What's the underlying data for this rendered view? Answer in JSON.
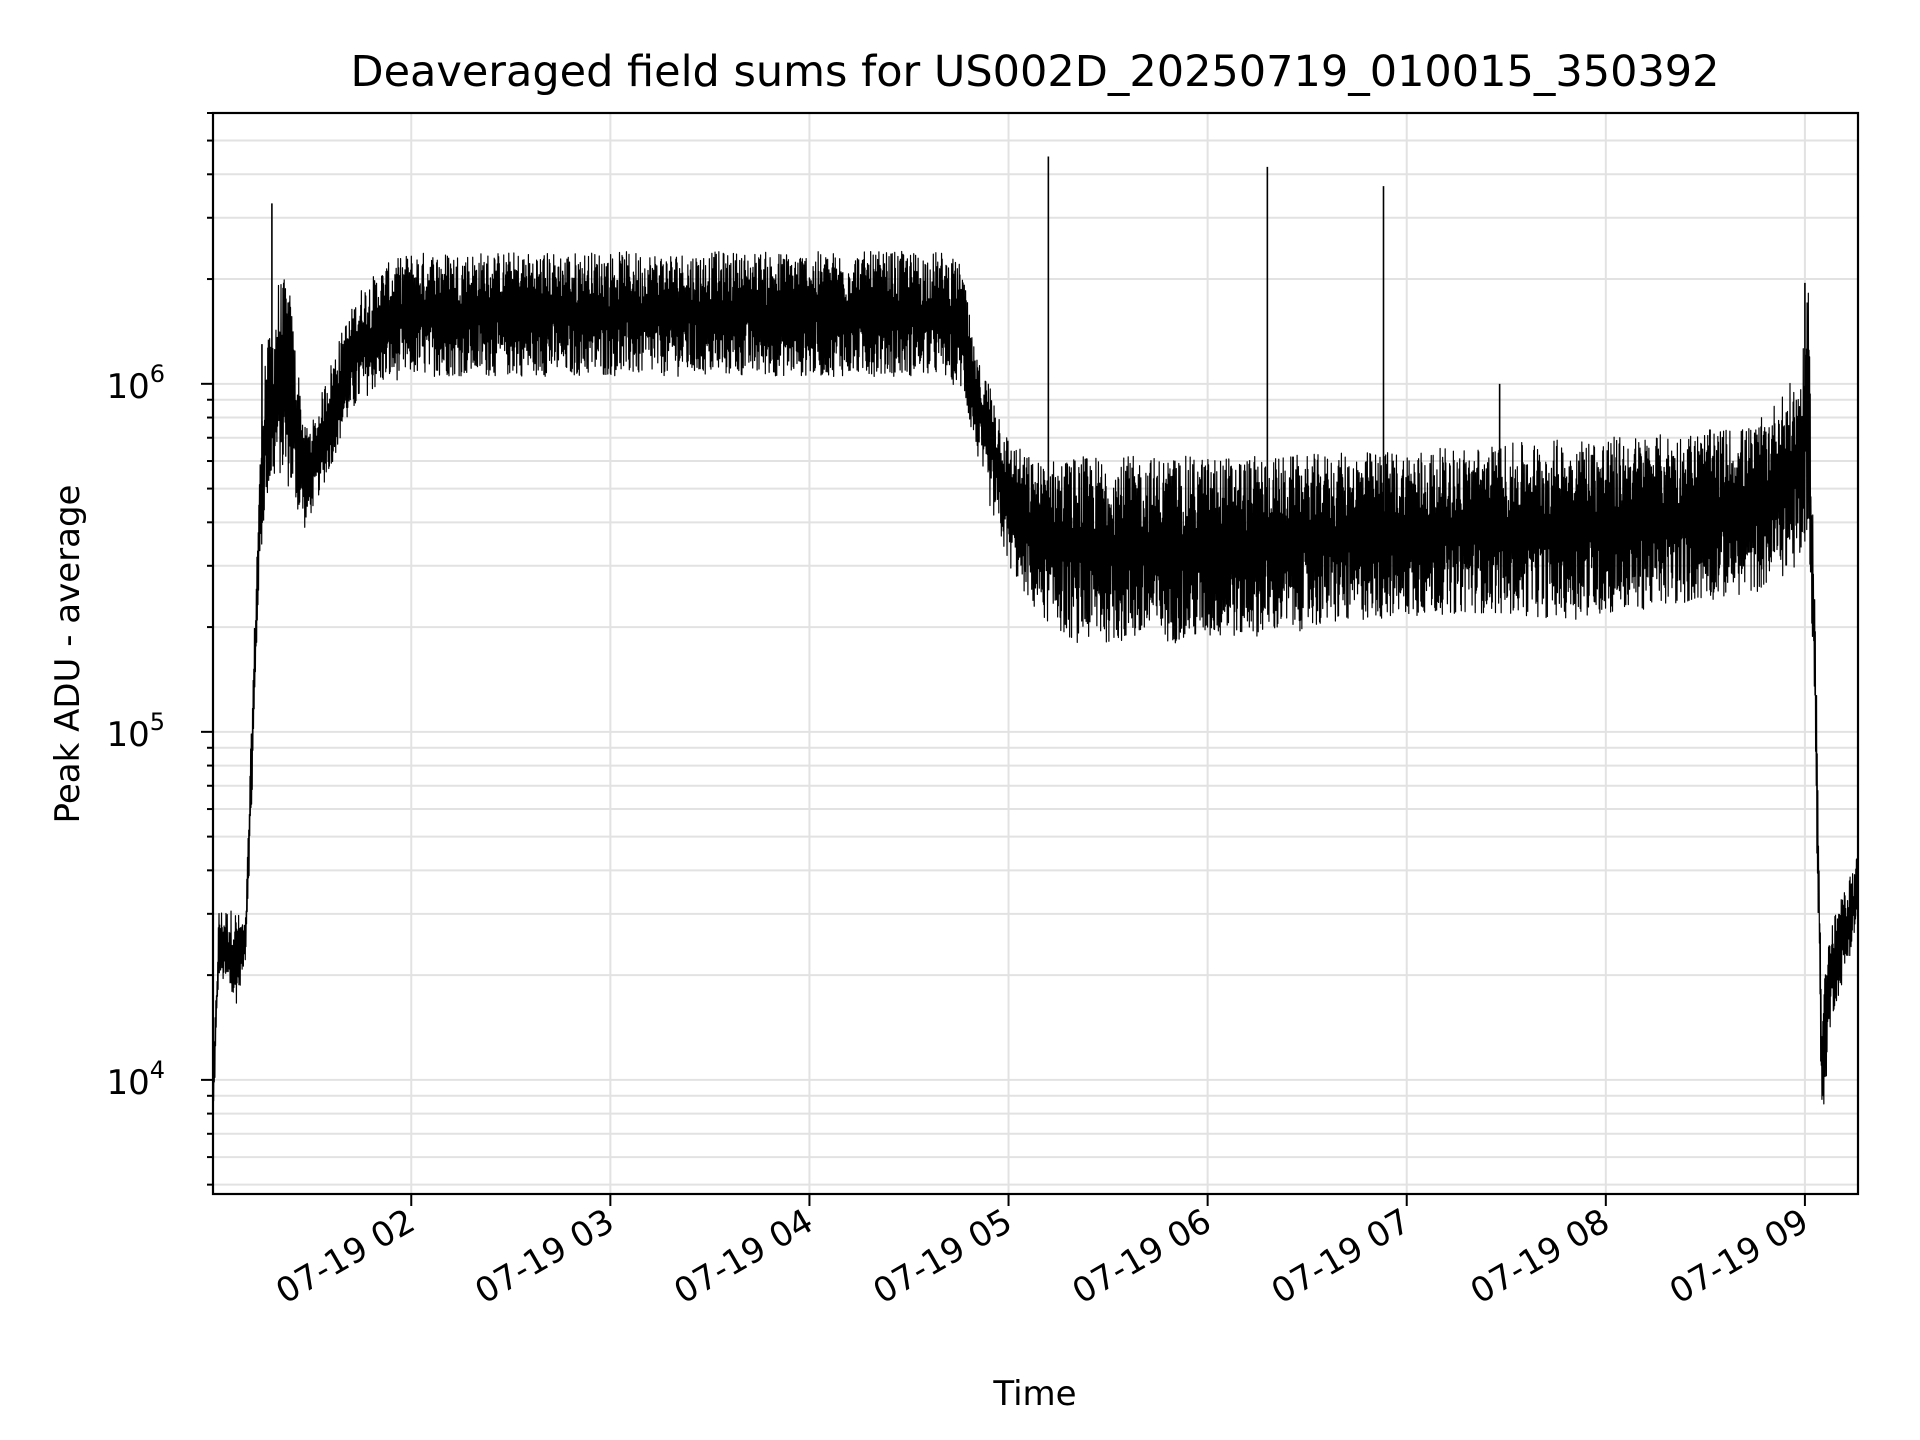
{
  "chart_data": {
    "type": "line",
    "title": "Deaveraged field sums for US002D_20250719_010015_350392",
    "xlabel": "Time",
    "ylabel": "Peak ADU - average",
    "yscale": "log",
    "grid": true,
    "x_range": [
      "2025-07-19 01:00:15",
      "2025-07-19 09:16"
    ],
    "ylim": [
      4700,
      6000000
    ],
    "x_ticks": [
      {
        "t": "2025-07-19 02:00",
        "label": "07-19 02"
      },
      {
        "t": "2025-07-19 03:00",
        "label": "07-19 03"
      },
      {
        "t": "2025-07-19 04:00",
        "label": "07-19 04"
      },
      {
        "t": "2025-07-19 05:00",
        "label": "07-19 05"
      },
      {
        "t": "2025-07-19 06:00",
        "label": "07-19 06"
      },
      {
        "t": "2025-07-19 07:00",
        "label": "07-19 07"
      },
      {
        "t": "2025-07-19 08:00",
        "label": "07-19 08"
      },
      {
        "t": "2025-07-19 09:00",
        "label": "07-19 09"
      }
    ],
    "y_ticks": [
      {
        "value": 10000,
        "base": "10",
        "exp": "4"
      },
      {
        "value": 100000,
        "base": "10",
        "exp": "5"
      },
      {
        "value": 1000000,
        "base": "10",
        "exp": "6"
      }
    ],
    "series_color": "#000000",
    "series": [
      {
        "envelope": [
          {
            "t": "2025-07-19 01:00:15",
            "low": 7000,
            "high": 10000
          },
          {
            "t": "2025-07-19 01:02",
            "low": 20000,
            "high": 31000
          },
          {
            "t": "2025-07-19 01:07",
            "low": 16000,
            "high": 31000
          },
          {
            "t": "2025-07-19 01:10",
            "low": 22000,
            "high": 28000
          },
          {
            "t": "2025-07-19 01:12",
            "low": 60000,
            "high": 120000
          },
          {
            "t": "2025-07-19 01:14",
            "low": 250000,
            "high": 500000
          },
          {
            "t": "2025-07-19 01:16",
            "low": 450000,
            "high": 1300000
          },
          {
            "t": "2025-07-19 01:18",
            "low": 500000,
            "high": 1400000
          },
          {
            "t": "2025-07-19 01:20",
            "low": 550000,
            "high": 2000000
          },
          {
            "t": "2025-07-19 01:23",
            "low": 500000,
            "high": 2000000
          },
          {
            "t": "2025-07-19 01:26",
            "low": 420000,
            "high": 1100000
          },
          {
            "t": "2025-07-19 01:28",
            "low": 380000,
            "high": 750000
          },
          {
            "t": "2025-07-19 01:31",
            "low": 450000,
            "high": 800000
          },
          {
            "t": "2025-07-19 01:35",
            "low": 550000,
            "high": 1100000
          },
          {
            "t": "2025-07-19 01:40",
            "low": 750000,
            "high": 1500000
          },
          {
            "t": "2025-07-19 01:45",
            "low": 900000,
            "high": 1900000
          },
          {
            "t": "2025-07-19 01:52",
            "low": 1000000,
            "high": 2200000
          },
          {
            "t": "2025-07-19 02:00",
            "low": 1050000,
            "high": 2400000
          },
          {
            "t": "2025-07-19 04:40",
            "low": 1050000,
            "high": 2400000
          },
          {
            "t": "2025-07-19 04:46",
            "low": 950000,
            "high": 2200000
          },
          {
            "t": "2025-07-19 04:50",
            "low": 650000,
            "high": 1200000
          },
          {
            "t": "2025-07-19 04:55",
            "low": 420000,
            "high": 1000000
          },
          {
            "t": "2025-07-19 05:00",
            "low": 300000,
            "high": 700000
          },
          {
            "t": "2025-07-19 05:08",
            "low": 220000,
            "high": 600000
          },
          {
            "t": "2025-07-19 05:20",
            "low": 180000,
            "high": 620000
          },
          {
            "t": "2025-07-19 05:50",
            "low": 180000,
            "high": 620000
          },
          {
            "t": "2025-07-19 06:20",
            "low": 190000,
            "high": 620000
          },
          {
            "t": "2025-07-19 06:50",
            "low": 210000,
            "high": 640000
          },
          {
            "t": "2025-07-19 07:20",
            "low": 220000,
            "high": 660000
          },
          {
            "t": "2025-07-19 07:50",
            "low": 210000,
            "high": 700000
          },
          {
            "t": "2025-07-19 08:20",
            "low": 230000,
            "high": 720000
          },
          {
            "t": "2025-07-19 08:45",
            "low": 250000,
            "high": 760000
          },
          {
            "t": "2025-07-19 08:59",
            "low": 300000,
            "high": 1100000
          },
          {
            "t": "2025-07-19 09:01",
            "low": 400000,
            "high": 1900000
          },
          {
            "t": "2025-07-19 09:03",
            "low": 100000,
            "high": 250000
          },
          {
            "t": "2025-07-19 09:05",
            "low": 7000,
            "high": 20000
          },
          {
            "t": "2025-07-19 09:08",
            "low": 15000,
            "high": 28000
          },
          {
            "t": "2025-07-19 09:12",
            "low": 20000,
            "high": 35000
          },
          {
            "t": "2025-07-19 09:16",
            "low": 28000,
            "high": 45000
          }
        ],
        "spikes": [
          {
            "t": "2025-07-19 01:15",
            "value": 1300000
          },
          {
            "t": "2025-07-19 01:18",
            "value": 3300000
          },
          {
            "t": "2025-07-19 05:12",
            "value": 4500000
          },
          {
            "t": "2025-07-19 06:18",
            "value": 4200000
          },
          {
            "t": "2025-07-19 06:53",
            "value": 3700000
          },
          {
            "t": "2025-07-19 07:28",
            "value": 1000000
          },
          {
            "t": "2025-07-19 09:00",
            "value": 1950000
          }
        ]
      }
    ]
  }
}
